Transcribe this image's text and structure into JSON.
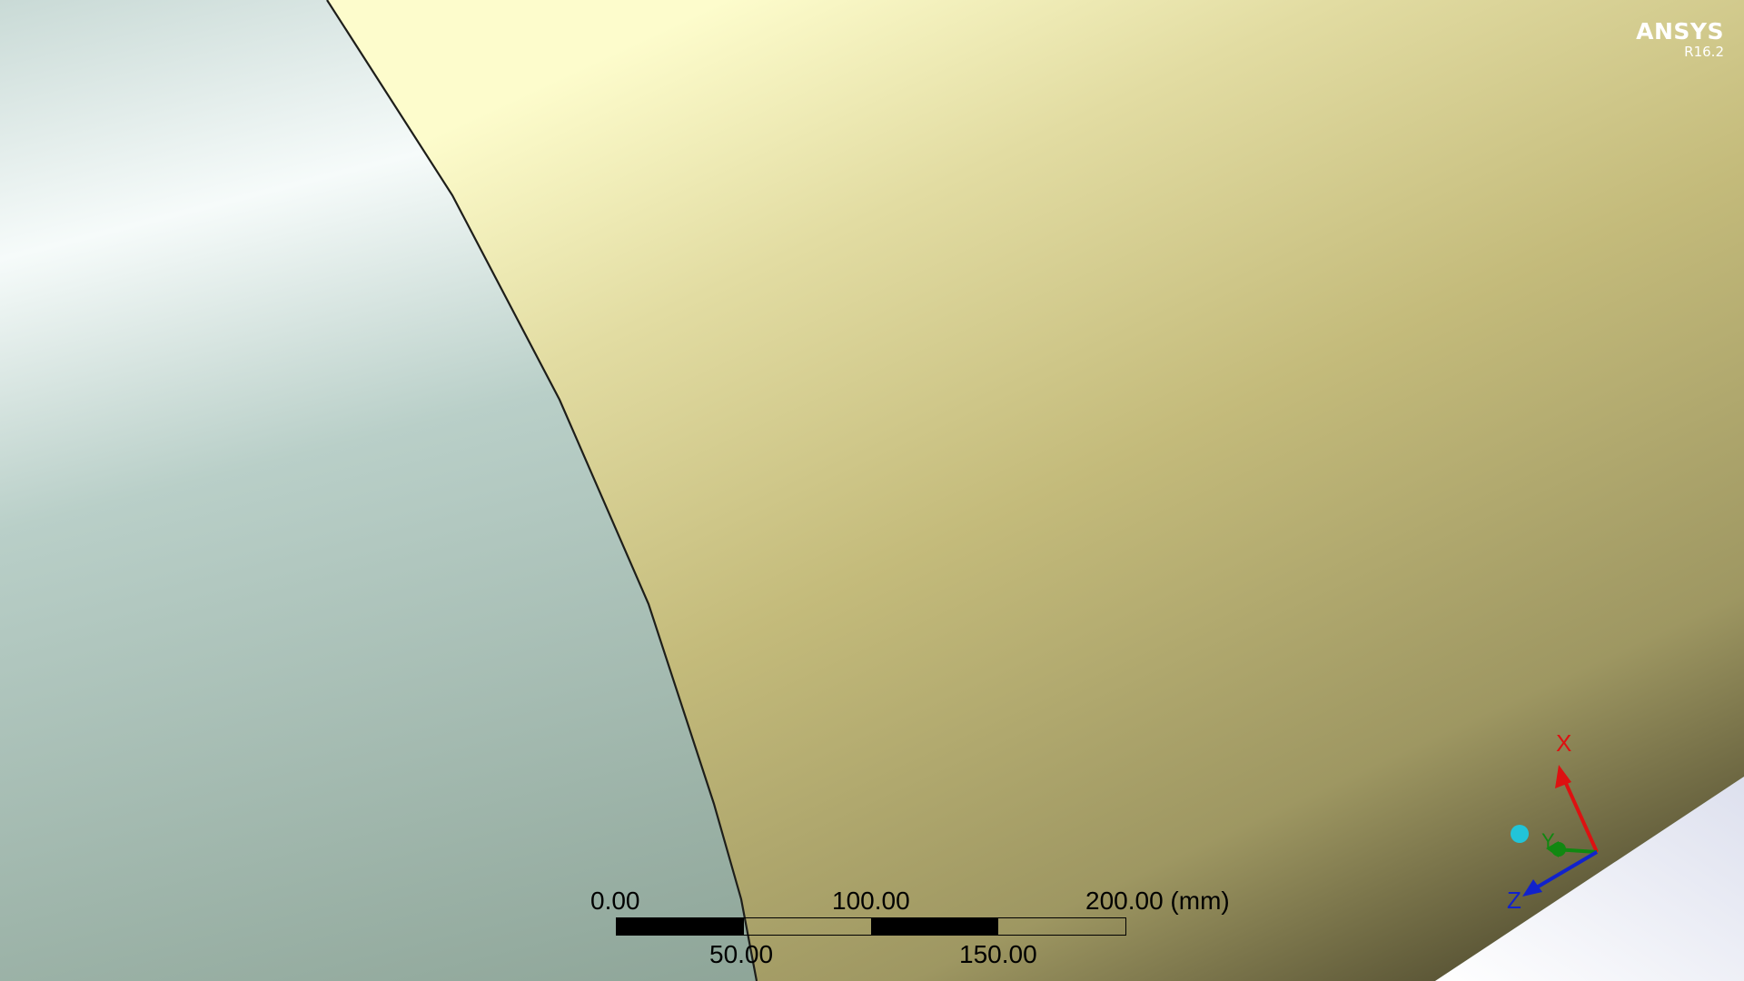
{
  "brand": {
    "name": "ANSYS",
    "version": "R16.2"
  },
  "scale_bar": {
    "labels_top": [
      "0.00",
      "100.00",
      "200.00 (mm)"
    ],
    "labels_bottom": [
      "50.00",
      "150.00"
    ],
    "segments": [
      "dark",
      "light",
      "dark",
      "light"
    ]
  },
  "triad": {
    "x_label": "X",
    "y_label": "Y",
    "z_label": "Z",
    "x_color": "#dd1111",
    "y_color": "#118811",
    "z_color": "#1122cc",
    "iso_ball_color": "#22c4d8"
  },
  "colors": {
    "body_highlight": "#fdfccc",
    "body_mid": "#c4bb7b",
    "body_shadow": "#3f3b24",
    "background_light": "#f6fbfa",
    "background_mid": "#a7bfb6",
    "background_dark": "#8ea598",
    "edge": "#1e1e1a"
  }
}
